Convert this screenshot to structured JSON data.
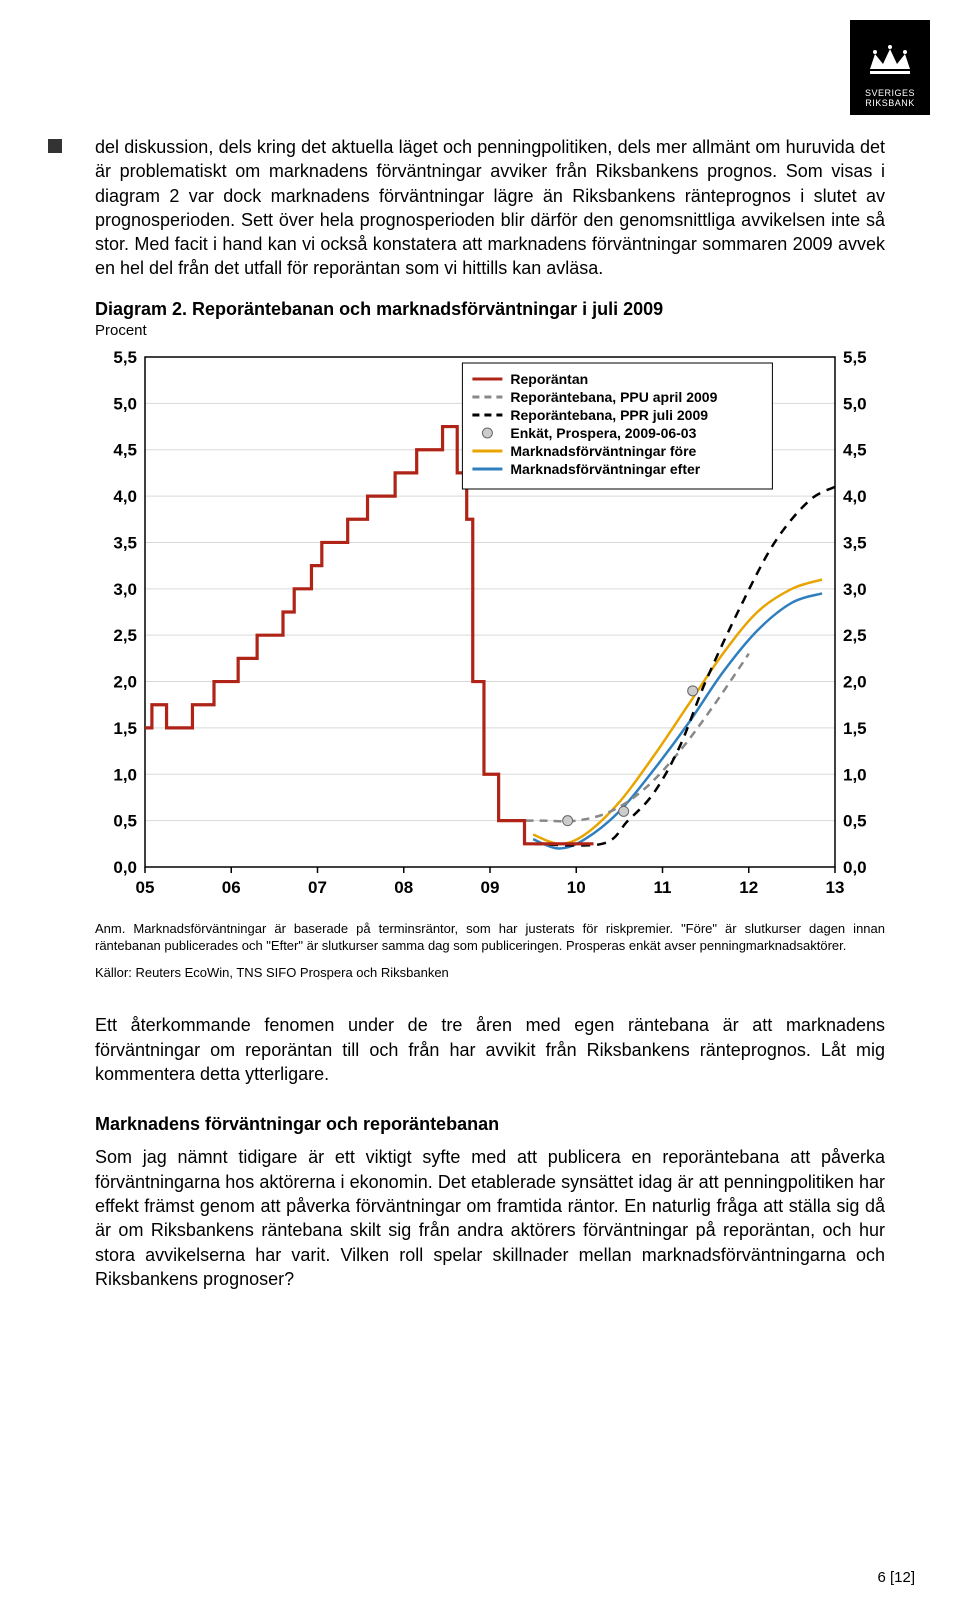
{
  "logo": {
    "line1": "SVERIGES",
    "line2": "RIKSBANK"
  },
  "para1": "del diskussion, dels kring det aktuella läget och penningpolitiken, dels mer allmänt om huruvida det är problematiskt om marknadens förväntningar avviker från Riksbankens prognos. Som visas i diagram 2 var dock marknadens förväntningar lägre än Riksbankens ränteprognos i slutet av prognosperioden. Sett över hela prognosperioden blir därför den genomsnittliga avvikelsen inte så stor. Med facit i hand kan vi också konstatera att marknadens förväntningar sommaren 2009 avvek en hel del från det utfall för reporäntan som vi hittills kan avläsa.",
  "chart": {
    "title": "Diagram 2. Reporäntebanan och marknadsförväntningar i juli 2009",
    "subtitle": "Procent",
    "x_labels": [
      "05",
      "06",
      "07",
      "08",
      "09",
      "10",
      "11",
      "12",
      "13"
    ],
    "y_min": 0.0,
    "y_max": 5.5,
    "y_step": 0.5,
    "y_labels": [
      "5,5",
      "5,0",
      "4,5",
      "4,0",
      "3,5",
      "3,0",
      "2,5",
      "2,0",
      "1,5",
      "1,0",
      "0,5",
      "0,0"
    ],
    "colors": {
      "reporantan": "#b02418",
      "ppu": "#888888",
      "ppr": "#000000",
      "enkat_marker": "#cccccc",
      "fore": "#e8a400",
      "efter": "#2f7fbf",
      "grid": "#d9d9d9",
      "axis": "#000000",
      "bg": "#ffffff"
    },
    "legend": [
      {
        "label": "Reporäntan",
        "type": "solid",
        "color": "#b02418"
      },
      {
        "label": "Reporäntebana, PPU april 2009",
        "type": "dash",
        "color": "#888888"
      },
      {
        "label": "Reporäntebana, PPR juli 2009",
        "type": "dash",
        "color": "#000000"
      },
      {
        "label": "Enkät, Prospera, 2009-06-03",
        "type": "marker",
        "color": "#cccccc"
      },
      {
        "label": "Marknadsförväntningar före",
        "type": "solid",
        "color": "#e8a400"
      },
      {
        "label": "Marknadsförväntningar efter",
        "type": "solid",
        "color": "#2f7fbf"
      }
    ],
    "series": {
      "reporantan_steps": [
        [
          0.0,
          1.5
        ],
        [
          0.08,
          1.5
        ],
        [
          0.08,
          1.75
        ],
        [
          0.25,
          1.75
        ],
        [
          0.25,
          1.5
        ],
        [
          0.55,
          1.5
        ],
        [
          0.55,
          1.75
        ],
        [
          0.8,
          1.75
        ],
        [
          0.8,
          2.0
        ],
        [
          1.08,
          2.0
        ],
        [
          1.08,
          2.25
        ],
        [
          1.3,
          2.25
        ],
        [
          1.3,
          2.5
        ],
        [
          1.6,
          2.5
        ],
        [
          1.6,
          2.75
        ],
        [
          1.73,
          2.75
        ],
        [
          1.73,
          3.0
        ],
        [
          1.93,
          3.0
        ],
        [
          1.93,
          3.25
        ],
        [
          2.05,
          3.25
        ],
        [
          2.05,
          3.5
        ],
        [
          2.35,
          3.5
        ],
        [
          2.35,
          3.75
        ],
        [
          2.58,
          3.75
        ],
        [
          2.58,
          4.0
        ],
        [
          2.9,
          4.0
        ],
        [
          2.9,
          4.25
        ],
        [
          3.15,
          4.25
        ],
        [
          3.15,
          4.5
        ],
        [
          3.45,
          4.5
        ],
        [
          3.45,
          4.75
        ],
        [
          3.62,
          4.75
        ],
        [
          3.62,
          4.25
        ],
        [
          3.73,
          4.25
        ],
        [
          3.73,
          3.75
        ],
        [
          3.8,
          3.75
        ],
        [
          3.8,
          2.0
        ],
        [
          3.93,
          2.0
        ],
        [
          3.93,
          1.0
        ],
        [
          4.1,
          1.0
        ],
        [
          4.1,
          0.5
        ],
        [
          4.4,
          0.5
        ],
        [
          4.4,
          0.25
        ],
        [
          5.2,
          0.25
        ]
      ],
      "ppr_dash": [
        [
          4.5,
          0.25
        ],
        [
          5.3,
          0.25
        ],
        [
          5.6,
          0.5
        ],
        [
          5.9,
          0.8
        ],
        [
          6.2,
          1.3
        ],
        [
          6.5,
          2.0
        ],
        [
          6.9,
          2.8
        ],
        [
          7.3,
          3.5
        ],
        [
          7.7,
          3.95
        ],
        [
          8.0,
          4.1
        ]
      ],
      "ppu_dash": [
        [
          4.25,
          0.5
        ],
        [
          4.6,
          0.5
        ],
        [
          5.0,
          0.5
        ],
        [
          5.4,
          0.6
        ],
        [
          5.8,
          0.85
        ],
        [
          6.2,
          1.25
        ],
        [
          6.6,
          1.75
        ],
        [
          7.0,
          2.3
        ]
      ],
      "fore": [
        [
          4.5,
          0.35
        ],
        [
          4.8,
          0.25
        ],
        [
          5.1,
          0.35
        ],
        [
          5.5,
          0.7
        ],
        [
          5.9,
          1.2
        ],
        [
          6.3,
          1.75
        ],
        [
          6.7,
          2.3
        ],
        [
          7.1,
          2.75
        ],
        [
          7.5,
          3.0
        ],
        [
          7.85,
          3.1
        ]
      ],
      "efter": [
        [
          4.5,
          0.3
        ],
        [
          4.8,
          0.2
        ],
        [
          5.1,
          0.3
        ],
        [
          5.5,
          0.6
        ],
        [
          5.9,
          1.05
        ],
        [
          6.3,
          1.55
        ],
        [
          6.7,
          2.1
        ],
        [
          7.1,
          2.55
        ],
        [
          7.5,
          2.85
        ],
        [
          7.85,
          2.95
        ]
      ],
      "enkat_points": [
        [
          4.9,
          0.5
        ],
        [
          5.55,
          0.6
        ],
        [
          6.35,
          1.9
        ]
      ]
    },
    "note": "Anm. Marknadsförväntningar är baserade på terminsräntor, som har justerats för riskpremier. \"Före\" är slutkurser dagen innan räntebanan publicerades och \"Efter\" är slutkurser samma dag som publiceringen. Prosperas enkät avser penningmarknadsaktörer.",
    "sources": "Källor: Reuters EcoWin, TNS SIFO Prospera och Riksbanken"
  },
  "para2": "Ett återkommande fenomen under de tre åren med egen räntebana är att marknadens förväntningar om reporäntan till och från har avvikit från Riksbankens ränteprognos. Låt mig kommentera detta ytterligare.",
  "section_head": "Marknadens förväntningar och reporäntebanan",
  "para3": "Som jag nämnt tidigare är ett viktigt syfte med att publicera en reporäntebana att påverka förväntningarna hos aktörerna i ekonomin. Det etablerade synsättet idag är att penningpolitiken har effekt främst genom att påverka förväntningar om framtida räntor. En naturlig fråga att ställa sig då är om Riksbankens räntebana skilt sig från andra aktörers förväntningar på reporäntan, och hur stora avvikelserna har varit. Vilken roll spelar skillnader mellan marknadsförväntningarna och Riksbankens prognoser?",
  "page_num": "6 [12]"
}
